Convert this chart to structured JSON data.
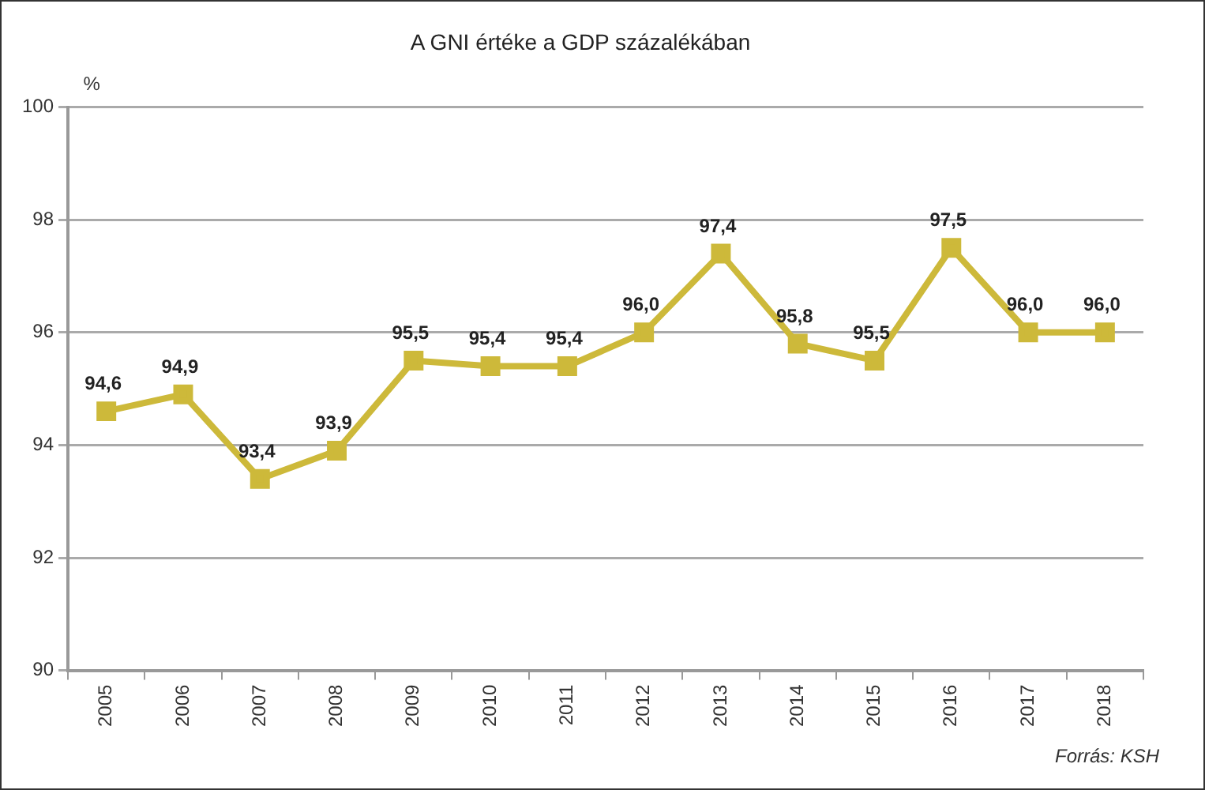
{
  "chart_data": {
    "type": "line",
    "title": "A GNI értéke a GDP százalékában",
    "ylabel": "%",
    "annotations": [
      "Forrás: KSH"
    ],
    "categories": [
      "2005",
      "2006",
      "2007",
      "2008",
      "2009",
      "2010",
      "2011",
      "2012",
      "2013",
      "2014",
      "2015",
      "2016",
      "2017",
      "2018"
    ],
    "series": [
      {
        "color": "#cdb93a",
        "values": [
          94.6,
          94.9,
          93.4,
          93.9,
          95.5,
          95.4,
          95.4,
          96.0,
          97.4,
          95.8,
          95.5,
          97.5,
          96.0,
          96.0
        ],
        "value_labels": [
          "94,6",
          "94,9",
          "93,4",
          "93,9",
          "95,5",
          "95,4",
          "95,4",
          "96,0",
          "97,4",
          "95,8",
          "95,5",
          "97,5",
          "96,0",
          "96,0"
        ]
      }
    ],
    "ylim": [
      90,
      100
    ],
    "yticks": [
      90,
      92,
      94,
      96,
      98,
      100
    ],
    "grid": "y",
    "legend": false,
    "marker": "square",
    "line_style": "solid"
  }
}
